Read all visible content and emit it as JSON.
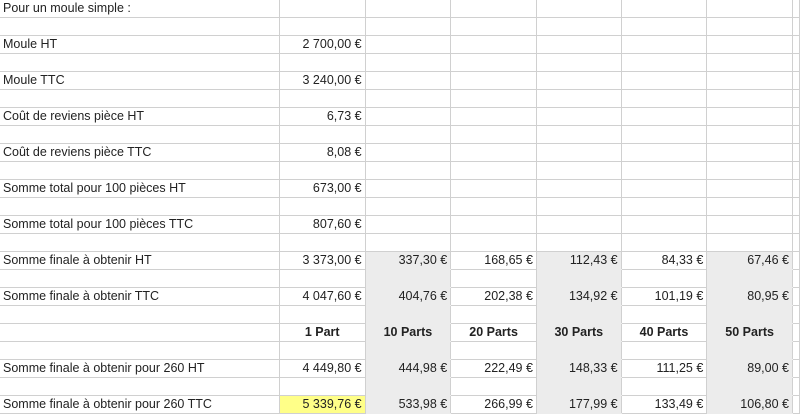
{
  "sheet": {
    "columns": 7,
    "shaded_columns": [
      2,
      4,
      6
    ],
    "shade_from_row": 14,
    "highlight_color": "#ffff88",
    "shade_color": "#ececec",
    "rows": [
      {
        "cells": [
          "Pour un moule simple :"
        ]
      },
      {
        "cells": []
      },
      {
        "cells": [
          "Moule HT",
          "2 700,00 €"
        ]
      },
      {
        "cells": []
      },
      {
        "cells": [
          "Moule TTC",
          "3 240,00 €"
        ]
      },
      {
        "cells": []
      },
      {
        "cells": [
          "Coût de reviens pièce HT",
          "6,73 €"
        ]
      },
      {
        "cells": []
      },
      {
        "cells": [
          "Coût de reviens pièce TTC",
          "8,08 €"
        ]
      },
      {
        "cells": []
      },
      {
        "cells": [
          "Somme total pour 100 pièces HT",
          "673,00 €"
        ]
      },
      {
        "cells": []
      },
      {
        "cells": [
          "Somme total pour 100 pièces TTC",
          "807,60 €"
        ]
      },
      {
        "cells": []
      },
      {
        "cells": [
          "Somme finale à obtenir HT",
          "3 373,00 €",
          "337,30 €",
          "168,65 €",
          "112,43 €",
          "84,33 €",
          "67,46 €"
        ]
      },
      {
        "cells": []
      },
      {
        "cells": [
          "Somme finale à obtenir TTC",
          "4 047,60 €",
          "404,76 €",
          "202,38 €",
          "134,92 €",
          "101,19 €",
          "80,95 €"
        ]
      },
      {
        "cells": []
      },
      {
        "header": true,
        "cells": [
          "",
          "1 Part",
          "10 Parts",
          "20 Parts",
          "30 Parts",
          "40 Parts",
          "50 Parts"
        ]
      },
      {
        "cells": []
      },
      {
        "cells": [
          "Somme finale à obtenir pour 260 HT",
          "4 449,80 €",
          "444,98 €",
          "222,49 €",
          "148,33 €",
          "111,25 €",
          "89,00 €"
        ]
      },
      {
        "cells": []
      },
      {
        "highlight_col": 1,
        "cells": [
          "Somme finale à obtenir pour 260 TTC",
          "5 339,76 €",
          "533,98 €",
          "266,99 €",
          "177,99 €",
          "133,49 €",
          "106,80 €"
        ]
      }
    ]
  }
}
